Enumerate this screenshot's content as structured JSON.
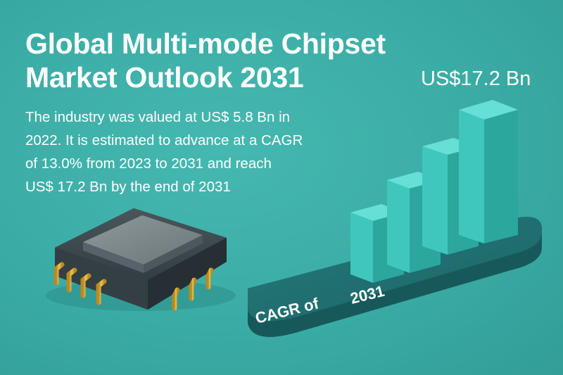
{
  "title": {
    "line1": "Global Multi-mode Chipset",
    "line2": "Market Outlook 2031"
  },
  "forecast_value": "US$17.2 Bn",
  "description": {
    "line1": "The industry was valued at US$ 5.8 Bn in",
    "line2": "2022. It is estimated to advance at a CAGR",
    "line3": "of 13.0% from 2023 to 2031 and reach",
    "line4": "US$ 17.2 Bn by the end of 2031"
  },
  "platform": {
    "cagr_label": "CAGR of",
    "year_label": "2031"
  },
  "colors": {
    "background": "#3aaca5",
    "bar_front": "#3fc7bd",
    "bar_top": "#5fded4",
    "bar_side": "#2ba79e",
    "platform": "#1f6f70",
    "chip_body": "#3e4a50",
    "chip_lid": "#7f8a8d",
    "pins": "#d8a832"
  },
  "icons": [
    "chip-icon",
    "bar-chart-icon"
  ]
}
